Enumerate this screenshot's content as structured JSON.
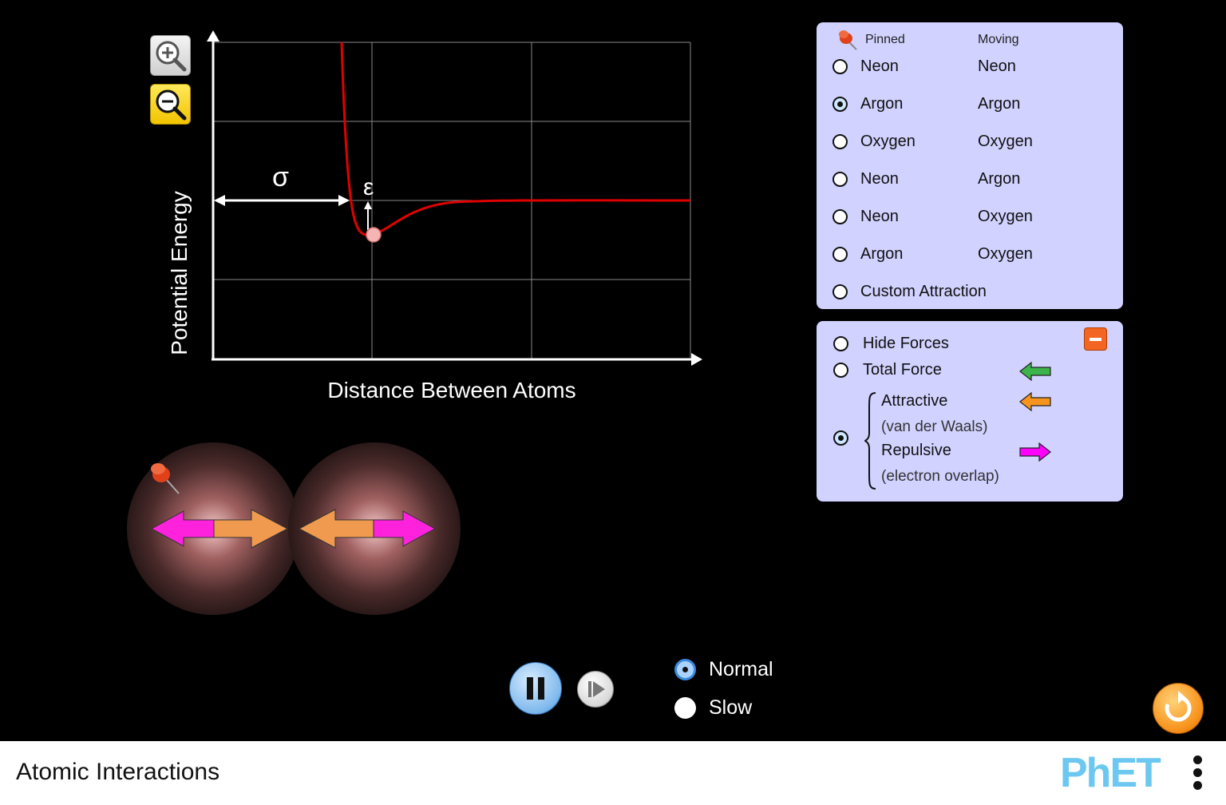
{
  "graph": {
    "y_label": "Potential Energy",
    "x_label": "Distance Between Atoms",
    "sigma_symbol": "σ",
    "epsilon_symbol": "ε"
  },
  "atom_panel": {
    "pinned_header": "Pinned",
    "moving_header": "Moving",
    "options": [
      {
        "pinned": "Neon",
        "moving": "Neon",
        "selected": false
      },
      {
        "pinned": "Argon",
        "moving": "Argon",
        "selected": true
      },
      {
        "pinned": "Oxygen",
        "moving": "Oxygen",
        "selected": false
      },
      {
        "pinned": "Neon",
        "moving": "Argon",
        "selected": false
      },
      {
        "pinned": "Neon",
        "moving": "Oxygen",
        "selected": false
      },
      {
        "pinned": "Argon",
        "moving": "Oxygen",
        "selected": false
      }
    ],
    "custom": "Custom Attraction"
  },
  "force_panel": {
    "hide_forces": "Hide Forces",
    "total_force": "Total Force",
    "attractive": "Attractive",
    "attractive_sub": "(van der Waals)",
    "repulsive": "Repulsive",
    "repulsive_sub": "(electron overlap)",
    "colors": {
      "total": "#3cb44b",
      "attractive": "#f7941d",
      "repulsive": "#ff00ff"
    }
  },
  "speed": {
    "normal": "Normal",
    "slow": "Slow",
    "selected": "Normal"
  },
  "footer": {
    "title": "Atomic Interactions",
    "logo": "PhET"
  }
}
